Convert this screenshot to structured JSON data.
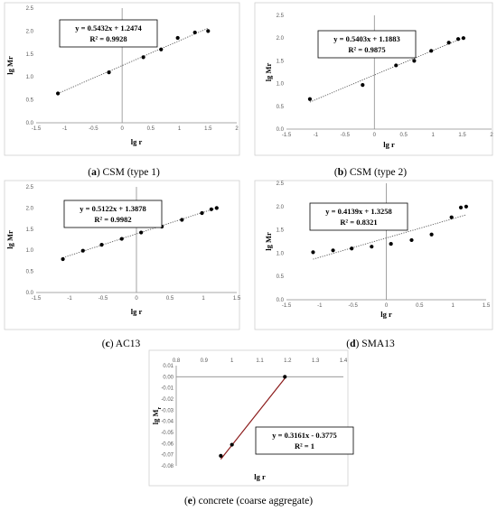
{
  "chart_data": [
    {
      "type": "scatter",
      "caption_letter": "(a)",
      "caption_text": "CSM (type 1)",
      "xlabel": "lg r",
      "ylabel": "lg Mr",
      "xlim": [
        -1.5,
        2
      ],
      "ylim": [
        0,
        2.5
      ],
      "xticks": [
        "-1.5",
        "-1",
        "-0.5",
        "0",
        "0.5",
        "1",
        "1.5",
        "2"
      ],
      "yticks": [
        "0.0",
        "0.5",
        "1.0",
        "1.5",
        "2.0",
        "2.5"
      ],
      "points": [
        [
          -1.12,
          0.64
        ],
        [
          -0.23,
          1.1
        ],
        [
          0.37,
          1.43
        ],
        [
          0.68,
          1.6
        ],
        [
          0.97,
          1.85
        ],
        [
          1.27,
          1.97
        ],
        [
          1.5,
          2.0
        ]
      ],
      "trendline": {
        "slope": 0.5432,
        "intercept": 1.2474,
        "x": [
          -1.12,
          1.5
        ],
        "style": "dotted",
        "color": "#555555"
      },
      "equation": "y = 0.5432x + 1.2474",
      "r2": "R² = 0.9928",
      "x_axis_position": "bottom"
    },
    {
      "type": "scatter",
      "caption_letter": "(b)",
      "caption_text": "CSM (type 2)",
      "xlabel": "lg r",
      "ylabel": "lg Mr",
      "xlim": [
        -1.5,
        2
      ],
      "ylim": [
        0,
        2.5
      ],
      "xticks": [
        "-1.5",
        "-1",
        "-0.5",
        "0",
        "0.5",
        "1",
        "1.5",
        "2"
      ],
      "yticks": [
        "0.0",
        "0.5",
        "1.0",
        "1.5",
        "2.0",
        "2.5"
      ],
      "points": [
        [
          -1.1,
          0.66
        ],
        [
          -0.2,
          0.97
        ],
        [
          0.37,
          1.4
        ],
        [
          0.68,
          1.5
        ],
        [
          0.97,
          1.72
        ],
        [
          1.27,
          1.9
        ],
        [
          1.43,
          1.98
        ],
        [
          1.52,
          2.0
        ]
      ],
      "trendline": {
        "slope": 0.5403,
        "intercept": 1.1883,
        "x": [
          -1.1,
          1.52
        ],
        "style": "dotted",
        "color": "#555555"
      },
      "equation": "y = 0.5403x + 1.1883",
      "r2": "R² = 0.9875",
      "x_axis_position": "bottom"
    },
    {
      "type": "scatter",
      "caption_letter": "(c)",
      "caption_text": "AC13",
      "xlabel": "lg r",
      "ylabel": "lg Mr",
      "xlim": [
        -1.5,
        1.5
      ],
      "ylim": [
        0,
        2.5
      ],
      "xticks": [
        "-1.5",
        "-1",
        "-0.5",
        "0",
        "0.5",
        "1",
        "1.5"
      ],
      "yticks": [
        "0.0",
        "0.5",
        "1.0",
        "1.5",
        "2.0",
        "2.5"
      ],
      "points": [
        [
          -1.1,
          0.79
        ],
        [
          -0.8,
          0.99
        ],
        [
          -0.52,
          1.13
        ],
        [
          -0.22,
          1.27
        ],
        [
          0.07,
          1.42
        ],
        [
          0.38,
          1.56
        ],
        [
          0.68,
          1.72
        ],
        [
          0.98,
          1.88
        ],
        [
          1.12,
          1.97
        ],
        [
          1.2,
          2.0
        ]
      ],
      "trendline": {
        "slope": 0.5122,
        "intercept": 1.3878,
        "x": [
          -1.1,
          1.2
        ],
        "style": "dotted",
        "color": "#555555"
      },
      "equation": "y = 0.5122x + 1.3878",
      "r2": "R² = 0.9982",
      "x_axis_position": "bottom"
    },
    {
      "type": "scatter",
      "caption_letter": "(d)",
      "caption_text": "SMA13",
      "xlabel": "lg r",
      "ylabel": "lg Mr",
      "xlim": [
        -1.5,
        1.5
      ],
      "ylim": [
        0,
        2.5
      ],
      "xticks": [
        "-1.5",
        "-1",
        "-0.5",
        "0",
        "0.5",
        "1",
        "1.5"
      ],
      "yticks": [
        "0.0",
        "0.5",
        "1.0",
        "1.5",
        "2.0",
        "2.5"
      ],
      "points": [
        [
          -1.1,
          1.02
        ],
        [
          -0.8,
          1.06
        ],
        [
          -0.52,
          1.1
        ],
        [
          -0.22,
          1.14
        ],
        [
          0.07,
          1.2
        ],
        [
          0.38,
          1.28
        ],
        [
          0.68,
          1.4
        ],
        [
          0.98,
          1.77
        ],
        [
          1.12,
          1.98
        ],
        [
          1.2,
          2.0
        ]
      ],
      "trendline": {
        "slope": 0.4139,
        "intercept": 1.3258,
        "x": [
          -1.1,
          1.2
        ],
        "style": "dotted",
        "color": "#555555"
      },
      "equation": "y = 0.4139x + 1.3258",
      "r2": "R² = 0.8321",
      "x_axis_position": "bottom"
    },
    {
      "type": "scatter",
      "caption_letter": "(e)",
      "caption_text": "concrete (coarse aggregate)",
      "xlabel": "lg r",
      "ylabel": "lg M",
      "ylabel_subscript": "r",
      "xlim": [
        0.8,
        1.4
      ],
      "ylim": [
        -0.08,
        0.01
      ],
      "xticks": [
        "0.8",
        "0.9",
        "1",
        "1.1",
        "1.2",
        "1.3",
        "1.4"
      ],
      "yticks": [
        "-0.08",
        "-0.07",
        "-0.06",
        "-0.05",
        "-0.04",
        "-0.03",
        "-0.02",
        "-0.01",
        "0.00",
        "0.01"
      ],
      "points": [
        [
          0.96,
          -0.071
        ],
        [
          1.0,
          -0.061
        ],
        [
          1.19,
          0.0
        ]
      ],
      "trendline": {
        "slope": 0.3161,
        "intercept": -0.3775,
        "x": [
          0.96,
          1.19
        ],
        "style": "solid",
        "color": "#8b1a1a"
      },
      "equation": "y = 0.3161x - 0.3775",
      "r2": "R² = 1",
      "x_axis_position": "top"
    }
  ]
}
